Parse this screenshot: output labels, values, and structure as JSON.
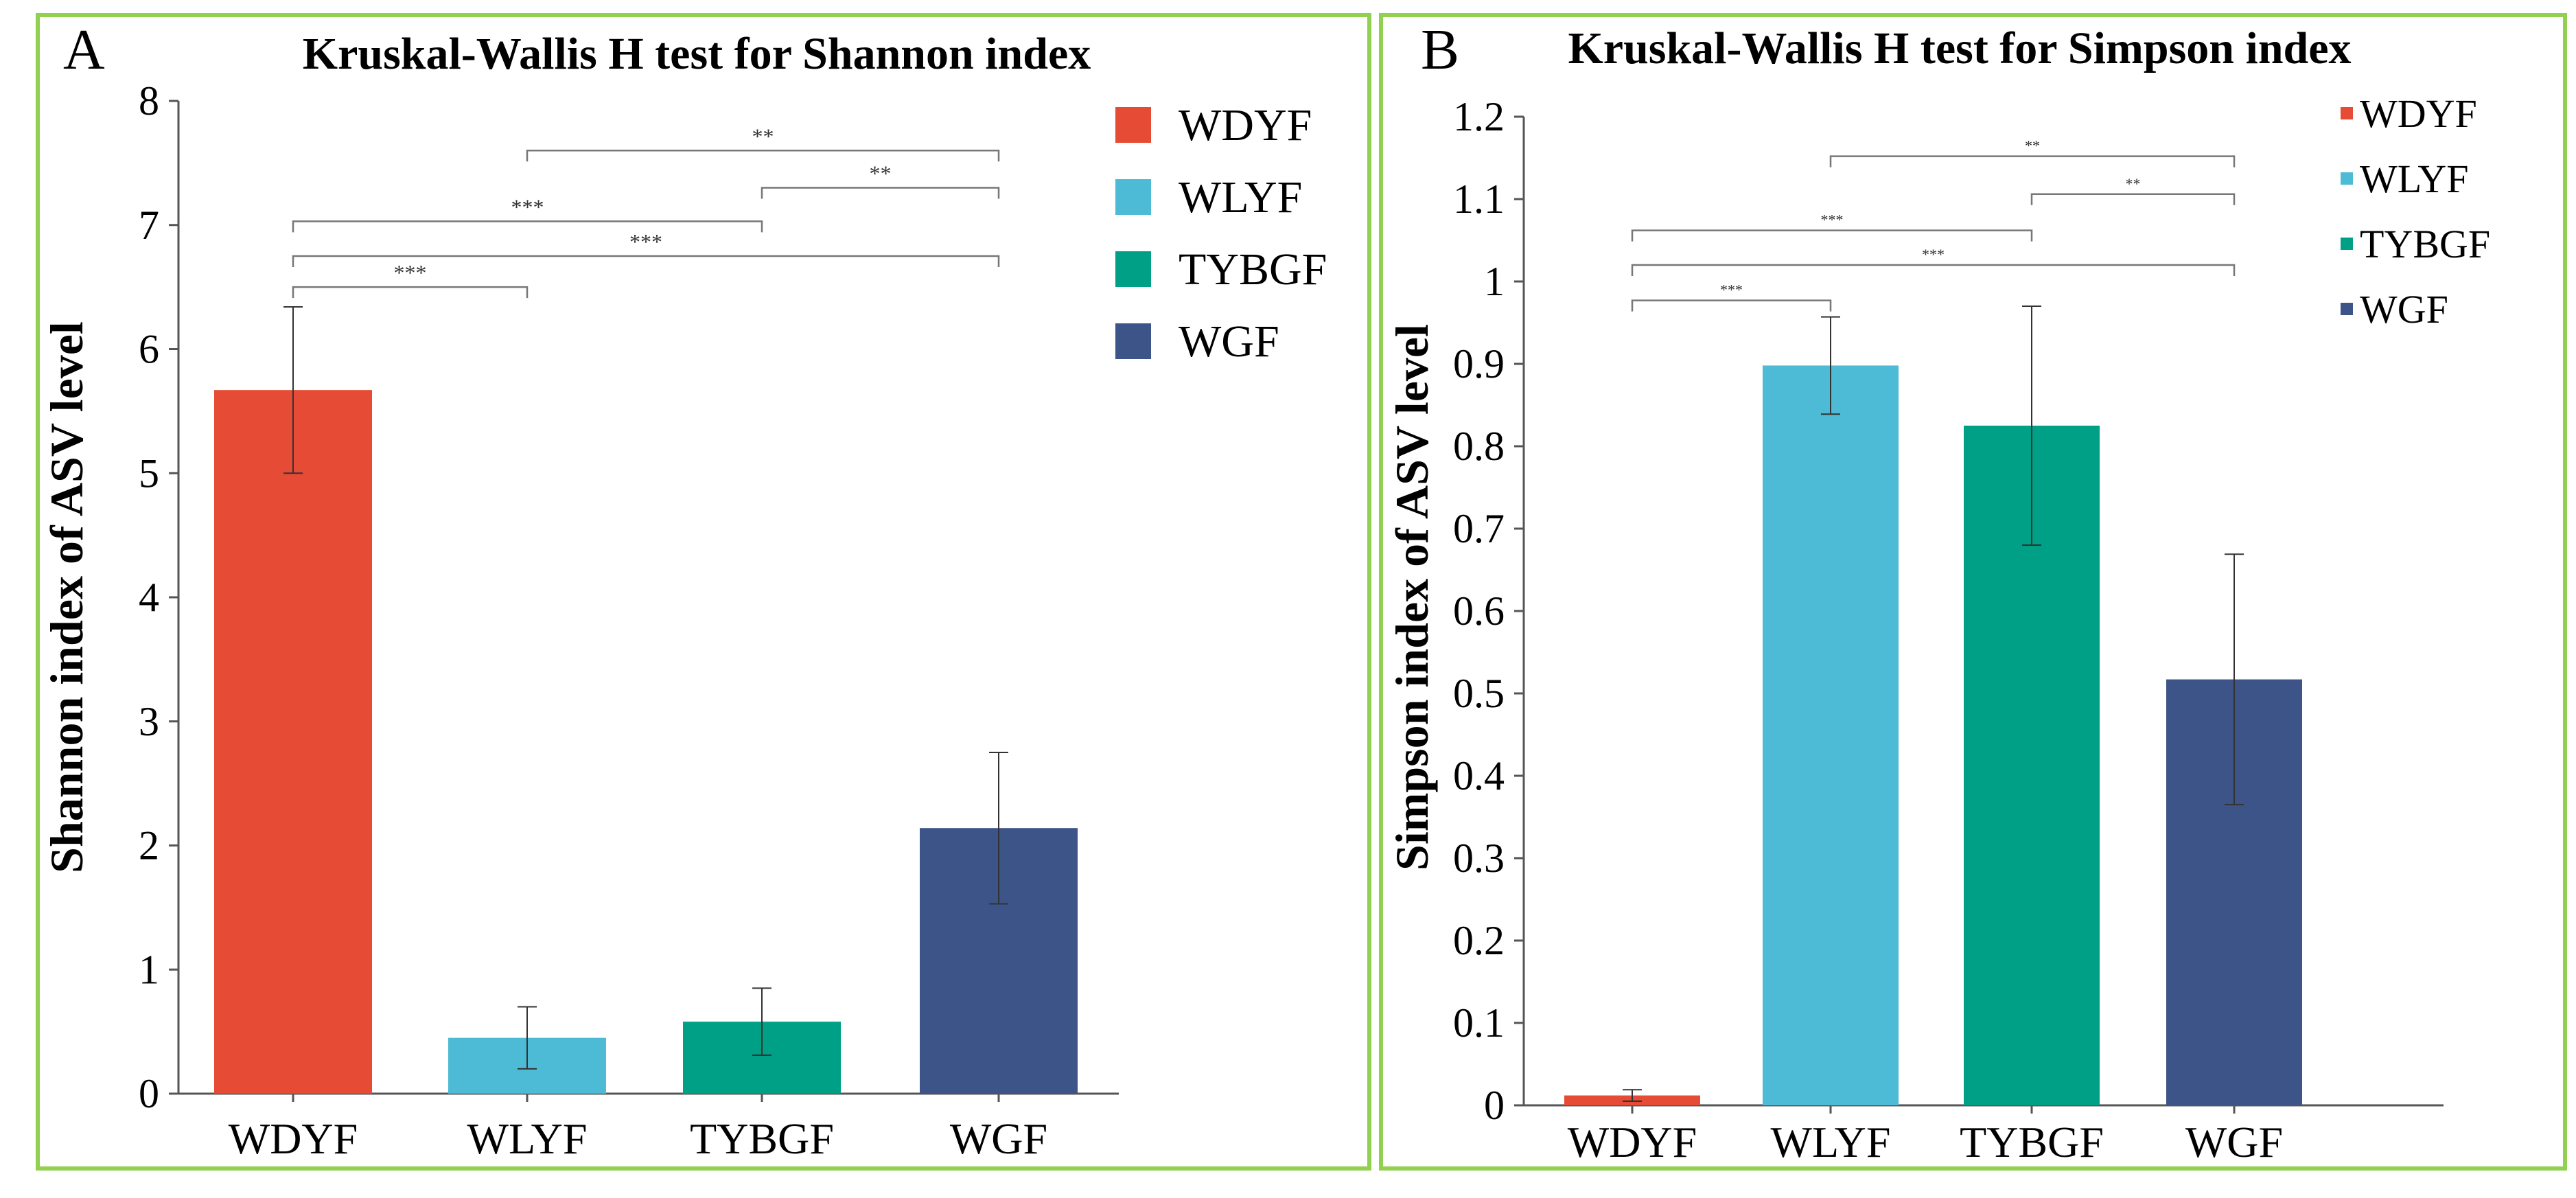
{
  "chart_data": [
    {
      "panel": "A",
      "type": "bar",
      "title": "Kruskal-Wallis H test for Shannon index",
      "ylabel": "Shannon index of ASV level",
      "xlabel": "",
      "categories": [
        "WDYF",
        "WLYF",
        "TYBGF",
        "WGF"
      ],
      "values": [
        5.67,
        0.45,
        0.58,
        2.14
      ],
      "errors": [
        0.67,
        0.25,
        0.27,
        0.61
      ],
      "colors": [
        "#E64B35",
        "#4DBBD5",
        "#00A087",
        "#3C5488"
      ],
      "ylim": [
        0,
        8
      ],
      "yticks": [
        "0",
        "1",
        "2",
        "3",
        "4",
        "5",
        "6",
        "7",
        "8"
      ],
      "legend": [
        "WDYF",
        "WLYF",
        "TYBGF",
        "WGF"
      ],
      "significance": [
        {
          "from": 0,
          "to": 1,
          "label": "***",
          "y": 6.5
        },
        {
          "from": 0,
          "to": 3,
          "label": "***",
          "y": 6.75
        },
        {
          "from": 0,
          "to": 2,
          "label": "***",
          "y": 7.03
        },
        {
          "from": 2,
          "to": 3,
          "label": "**",
          "y": 7.3
        },
        {
          "from": 1,
          "to": 3,
          "label": "**",
          "y": 7.6
        }
      ]
    },
    {
      "panel": "B",
      "type": "bar",
      "title": "Kruskal-Wallis H test for Simpson index",
      "ylabel": "Simpson index of ASV level",
      "xlabel": "",
      "categories": [
        "WDYF",
        "WLYF",
        "TYBGF",
        "WGF"
      ],
      "values": [
        0.012,
        0.898,
        0.825,
        0.517
      ],
      "errors": [
        0.007,
        0.059,
        0.145,
        0.152
      ],
      "colors": [
        "#E64B35",
        "#4DBBD5",
        "#00A087",
        "#3C5488"
      ],
      "ylim": [
        0,
        1.2
      ],
      "yticks": [
        "0",
        "0.1",
        "0.2",
        "0.3",
        "0.4",
        "0.5",
        "0.6",
        "0.7",
        "0.8",
        "0.9",
        "1",
        "1.1",
        "1.2"
      ],
      "legend": [
        "WDYF",
        "WLYF",
        "TYBGF",
        "WGF"
      ],
      "significance": [
        {
          "from": 0,
          "to": 1,
          "label": "***",
          "y": 0.977
        },
        {
          "from": 0,
          "to": 3,
          "label": "***",
          "y": 1.02
        },
        {
          "from": 0,
          "to": 2,
          "label": "***",
          "y": 1.062
        },
        {
          "from": 2,
          "to": 3,
          "label": "**",
          "y": 1.106
        },
        {
          "from": 1,
          "to": 3,
          "label": "**",
          "y": 1.152
        }
      ]
    }
  ]
}
